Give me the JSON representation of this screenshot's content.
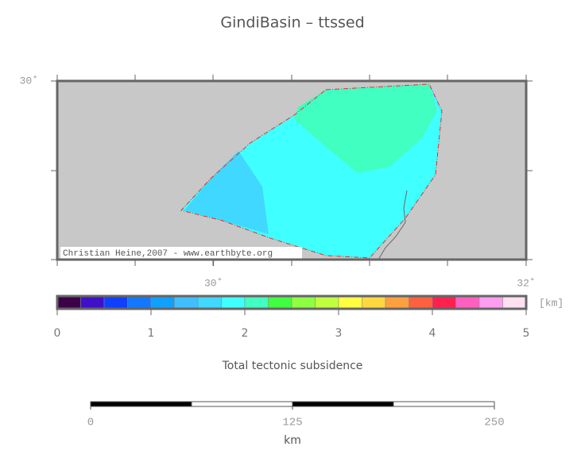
{
  "title": "GindiBasin – ttssed",
  "map": {
    "xlim": [
      29,
      32
    ],
    "ylim": [
      29,
      30
    ],
    "xticks": [
      {
        "value": 30,
        "label": "30˚"
      },
      {
        "value": 32,
        "label": "32˚"
      }
    ],
    "yticks": [
      {
        "value": 30,
        "label": "30˚"
      }
    ],
    "credit": "Christian Heine,2007 - www.earthbyte.org"
  },
  "colorbar": {
    "lim": [
      0,
      5
    ],
    "ticks": [
      0,
      1,
      2,
      3,
      4,
      5
    ],
    "unit": "[km]",
    "label": "Total tectonic subsidence",
    "colors": [
      "#3c0048",
      "#4010c8",
      "#1040ff",
      "#1478ff",
      "#10a0ff",
      "#40beff",
      "#40d8ff",
      "#40ffff",
      "#40ffc0",
      "#40ff40",
      "#8cff40",
      "#c0ff40",
      "#ffff40",
      "#ffd840",
      "#ffa040",
      "#ff6040",
      "#ff2050",
      "#ff60c0",
      "#ff9ef0",
      "#ffe0f0"
    ]
  },
  "scalebar": {
    "lim": [
      0,
      250
    ],
    "ticks": [
      0,
      125,
      250
    ],
    "unit": "km"
  }
}
